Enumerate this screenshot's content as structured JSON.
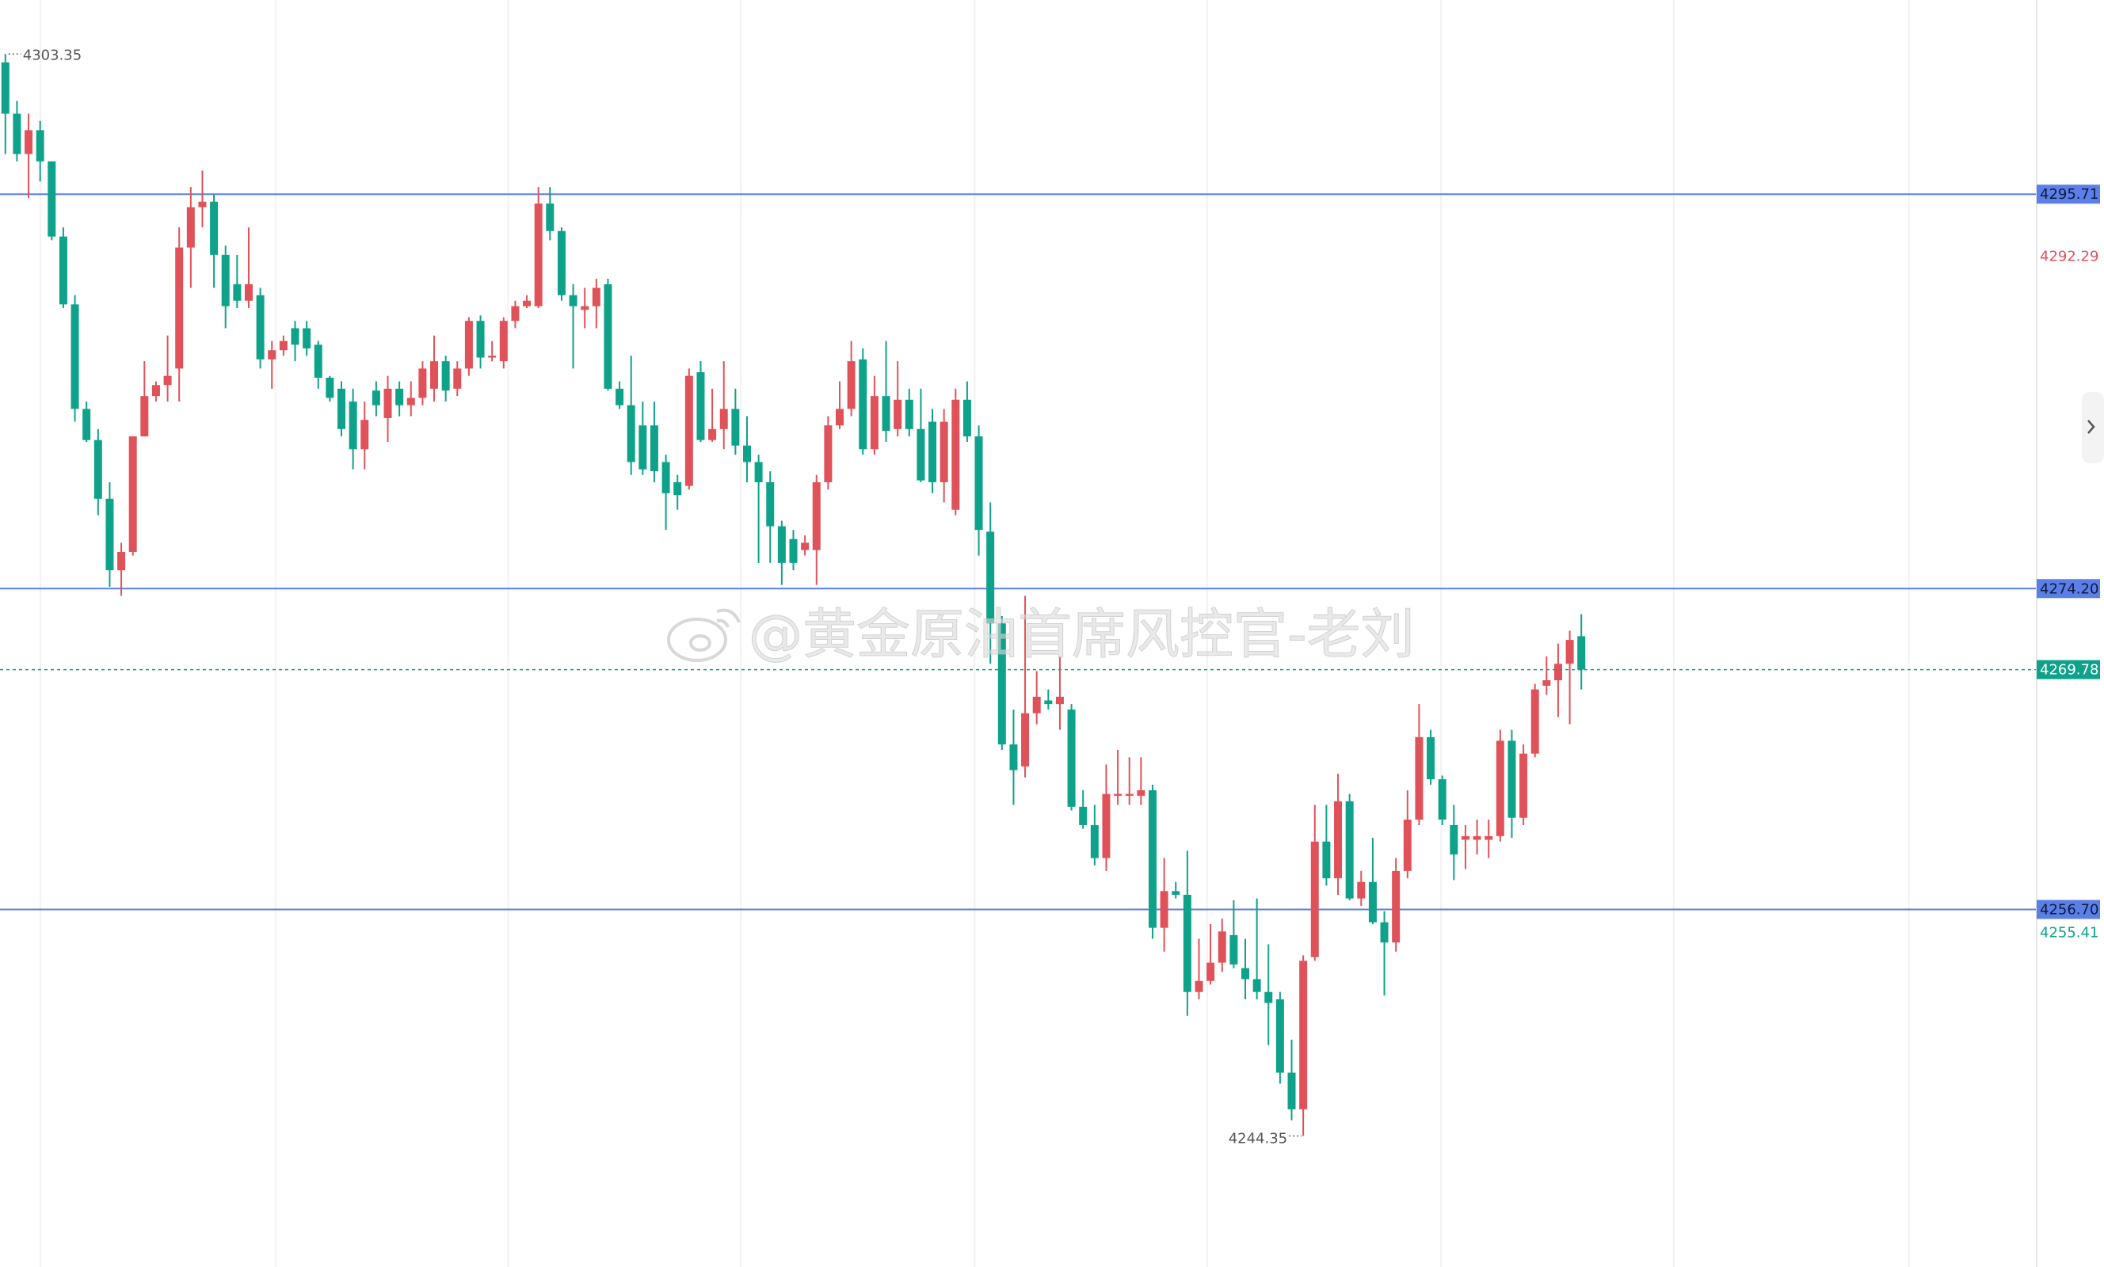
{
  "chart_data": {
    "type": "candlestick",
    "ylim": [
      4237.2,
      4306.3
    ],
    "up_color": "#e0525a",
    "down_color": "#0fa28a",
    "level_color": "#5b7fe6",
    "price_lines": [
      4295.71,
      {
        "value": 4274.2,
        "label": "4274.20"
      },
      {
        "value": 4256.7,
        "label": "4256.70"
      }
    ],
    "current_price": 4269.78,
    "price_markers": [
      {
        "value": 4292.29,
        "color": "#e0525a"
      },
      {
        "value": 4255.41,
        "color": "#0fa28a"
      }
    ],
    "candles": [
      [
        4302.9,
        4303.35,
        4297.9,
        4300.1
      ],
      [
        4300.1,
        4300.8,
        4297.5,
        4297.9
      ],
      [
        4297.9,
        4300.1,
        4295.5,
        4299.2
      ],
      [
        4299.2,
        4299.7,
        4296.4,
        4297.5
      ],
      [
        4297.5,
        4297.5,
        4293.2,
        4293.4
      ],
      [
        4293.4,
        4293.9,
        4289.5,
        4289.7
      ],
      [
        4289.7,
        4290.2,
        4283.3,
        4284.0
      ],
      [
        4284.0,
        4284.4,
        4282.2,
        4282.3
      ],
      [
        4282.3,
        4282.9,
        4278.2,
        4279.1
      ],
      [
        4279.1,
        4280.0,
        4274.3,
        4275.2
      ],
      [
        4275.2,
        4276.7,
        4273.8,
        4276.2
      ],
      [
        4276.2,
        4282.5,
        4276.0,
        4282.5
      ],
      [
        4282.5,
        4286.6,
        4282.5,
        4284.7
      ],
      [
        4284.7,
        4285.5,
        4284.4,
        4285.3
      ],
      [
        4285.3,
        4288.0,
        4284.4,
        4285.8
      ],
      [
        4286.2,
        4293.9,
        4284.4,
        4292.8
      ],
      [
        4292.8,
        4296.1,
        4290.6,
        4295.0
      ],
      [
        4295.0,
        4297.0,
        4293.9,
        4295.3
      ],
      [
        4295.3,
        4295.7,
        4290.6,
        4292.4
      ],
      [
        4292.4,
        4292.9,
        4288.4,
        4289.6
      ],
      [
        4290.8,
        4292.4,
        4289.5,
        4289.9
      ],
      [
        4289.9,
        4293.9,
        4289.5,
        4290.8
      ],
      [
        4290.2,
        4290.6,
        4286.2,
        4286.7
      ],
      [
        4286.7,
        4287.7,
        4285.1,
        4287.2
      ],
      [
        4287.2,
        4288.0,
        4286.9,
        4287.7
      ],
      [
        4288.4,
        4288.8,
        4286.6,
        4287.5
      ],
      [
        4288.4,
        4288.8,
        4286.9,
        4287.3
      ],
      [
        4287.5,
        4287.7,
        4285.1,
        4285.7
      ],
      [
        4285.7,
        4285.8,
        4284.4,
        4284.6
      ],
      [
        4285.1,
        4285.5,
        4282.5,
        4282.9
      ],
      [
        4284.4,
        4285.1,
        4280.7,
        4281.8
      ],
      [
        4281.8,
        4284.4,
        4280.7,
        4283.4
      ],
      [
        4285.0,
        4285.5,
        4283.6,
        4284.2
      ],
      [
        4283.5,
        4285.8,
        4282.2,
        4285.1
      ],
      [
        4285.1,
        4285.5,
        4283.6,
        4284.2
      ],
      [
        4284.2,
        4285.5,
        4283.6,
        4284.6
      ],
      [
        4284.6,
        4286.6,
        4284.2,
        4286.2
      ],
      [
        4285.1,
        4288.0,
        4284.4,
        4286.6
      ],
      [
        4286.6,
        4286.9,
        4284.4,
        4285.0
      ],
      [
        4285.1,
        4286.6,
        4284.7,
        4286.2
      ],
      [
        4286.2,
        4289.0,
        4285.8,
        4288.8
      ],
      [
        4288.8,
        4289.1,
        4286.2,
        4286.8
      ],
      [
        4286.8,
        4287.7,
        4286.6,
        4286.9
      ],
      [
        4286.6,
        4289.0,
        4286.2,
        4288.8
      ],
      [
        4288.8,
        4289.9,
        4288.4,
        4289.6
      ],
      [
        4289.6,
        4290.2,
        4289.5,
        4289.9
      ],
      [
        4289.6,
        4296.1,
        4289.5,
        4295.2
      ],
      [
        4295.2,
        4296.1,
        4293.2,
        4293.7
      ],
      [
        4293.7,
        4293.9,
        4289.9,
        4290.2
      ],
      [
        4290.2,
        4290.8,
        4286.2,
        4289.6
      ],
      [
        4289.4,
        4290.6,
        4288.4,
        4289.6
      ],
      [
        4289.6,
        4291.1,
        4288.4,
        4290.6
      ],
      [
        4290.8,
        4291.1,
        4285.0,
        4285.1
      ],
      [
        4285.1,
        4285.5,
        4284.0,
        4284.2
      ],
      [
        4284.2,
        4286.9,
        4280.4,
        4281.1
      ],
      [
        4283.1,
        4284.4,
        4280.4,
        4280.7
      ],
      [
        4283.1,
        4284.4,
        4280.0,
        4280.6
      ],
      [
        4281.1,
        4281.5,
        4277.4,
        4279.4
      ],
      [
        4280.0,
        4280.4,
        4278.5,
        4279.3
      ],
      [
        4279.8,
        4286.2,
        4279.6,
        4285.8
      ],
      [
        4286.0,
        4286.6,
        4282.2,
        4282.3
      ],
      [
        4282.3,
        4285.1,
        4282.2,
        4282.9
      ],
      [
        4282.9,
        4286.6,
        4281.8,
        4284.0
      ],
      [
        4284.0,
        4285.1,
        4281.5,
        4282.0
      ],
      [
        4282.0,
        4283.6,
        4280.0,
        4281.1
      ],
      [
        4281.1,
        4281.5,
        4275.6,
        4280.0
      ],
      [
        4280.0,
        4280.6,
        4275.6,
        4277.6
      ],
      [
        4277.6,
        4277.9,
        4274.4,
        4275.6
      ],
      [
        4276.9,
        4277.4,
        4275.2,
        4275.6
      ],
      [
        4276.3,
        4277.1,
        4276.0,
        4276.7
      ],
      [
        4276.3,
        4280.4,
        4274.4,
        4280.0
      ],
      [
        4280.0,
        4283.6,
        4279.6,
        4283.1
      ],
      [
        4283.1,
        4285.5,
        4282.9,
        4284.0
      ],
      [
        4284.0,
        4287.7,
        4283.6,
        4286.6
      ],
      [
        4286.7,
        4287.3,
        4281.5,
        4281.8
      ],
      [
        4281.8,
        4285.8,
        4281.5,
        4284.7
      ],
      [
        4284.7,
        4287.7,
        4282.2,
        4282.8
      ],
      [
        4282.9,
        4286.6,
        4282.5,
        4284.5
      ],
      [
        4284.5,
        4285.1,
        4282.5,
        4282.9
      ],
      [
        4282.9,
        4285.1,
        4280.0,
        4280.1
      ],
      [
        4283.3,
        4284.0,
        4279.4,
        4280.0
      ],
      [
        4280.0,
        4284.0,
        4278.9,
        4283.3
      ],
      [
        4278.5,
        4285.1,
        4278.2,
        4284.5
      ],
      [
        4284.5,
        4285.5,
        4282.2,
        4282.5
      ],
      [
        4282.5,
        4283.1,
        4276.0,
        4277.4
      ],
      [
        4277.3,
        4278.9,
        4270.1,
        4272.3
      ],
      [
        4272.3,
        4272.7,
        4265.4,
        4265.7
      ],
      [
        4265.7,
        4267.6,
        4262.4,
        4264.3
      ],
      [
        4264.5,
        4273.8,
        4263.9,
        4267.4
      ],
      [
        4267.4,
        4269.7,
        4266.8,
        4268.3
      ],
      [
        4268.1,
        4268.7,
        4267.6,
        4267.9
      ],
      [
        4267.9,
        4270.5,
        4266.5,
        4268.3
      ],
      [
        4267.6,
        4267.9,
        4262.1,
        4262.3
      ],
      [
        4262.3,
        4263.2,
        4261.1,
        4261.3
      ],
      [
        4261.3,
        4262.4,
        4259.1,
        4259.5
      ],
      [
        4259.5,
        4264.6,
        4258.8,
        4263.0
      ],
      [
        4262.9,
        4265.4,
        4262.4,
        4263.0
      ],
      [
        4262.9,
        4265.0,
        4262.4,
        4263.0
      ],
      [
        4262.9,
        4265.0,
        4262.4,
        4263.2
      ],
      [
        4263.2,
        4263.5,
        4255.1,
        4255.7
      ],
      [
        4255.7,
        4259.5,
        4254.4,
        4257.7
      ],
      [
        4257.7,
        4258.2,
        4257.3,
        4257.5
      ],
      [
        4257.5,
        4259.9,
        4250.9,
        4252.2
      ],
      [
        4252.2,
        4255.1,
        4251.8,
        4252.8
      ],
      [
        4252.8,
        4255.9,
        4252.6,
        4253.8
      ],
      [
        4253.8,
        4256.2,
        4253.3,
        4255.5
      ],
      [
        4255.3,
        4257.2,
        4253.5,
        4253.7
      ],
      [
        4253.5,
        4255.1,
        4251.8,
        4252.9
      ],
      [
        4252.9,
        4257.3,
        4251.8,
        4252.2
      ],
      [
        4252.2,
        4254.8,
        4249.3,
        4251.6
      ],
      [
        4251.8,
        4252.2,
        4247.2,
        4247.8
      ],
      [
        4247.8,
        4249.6,
        4245.2,
        4245.8
      ],
      [
        4245.8,
        4254.2,
        4244.35,
        4253.9
      ],
      [
        4254.1,
        4262.4,
        4253.9,
        4260.4
      ],
      [
        4260.4,
        4262.4,
        4258.0,
        4258.4
      ],
      [
        4258.4,
        4264.1,
        4257.5,
        4262.6
      ],
      [
        4262.6,
        4263.0,
        4257.2,
        4257.3
      ],
      [
        4257.3,
        4258.8,
        4256.9,
        4258.2
      ],
      [
        4258.2,
        4260.6,
        4255.9,
        4256.0
      ],
      [
        4256.0,
        4256.6,
        4252.0,
        4254.9
      ],
      [
        4254.9,
        4259.5,
        4254.4,
        4258.8
      ],
      [
        4258.8,
        4263.2,
        4258.4,
        4261.6
      ],
      [
        4261.6,
        4267.9,
        4261.3,
        4266.1
      ],
      [
        4266.1,
        4266.5,
        4263.5,
        4263.8
      ],
      [
        4263.8,
        4264.0,
        4261.3,
        4261.6
      ],
      [
        4261.3,
        4262.4,
        4258.3,
        4259.7
      ],
      [
        4260.5,
        4261.3,
        4258.9,
        4260.7
      ],
      [
        4260.5,
        4261.6,
        4259.7,
        4260.7
      ],
      [
        4260.5,
        4261.6,
        4259.5,
        4260.7
      ],
      [
        4260.7,
        4266.5,
        4260.4,
        4265.9
      ],
      [
        4265.9,
        4266.5,
        4260.6,
        4261.7
      ],
      [
        4261.7,
        4265.7,
        4261.3,
        4265.2
      ],
      [
        4265.2,
        4269.0,
        4265.0,
        4268.7
      ],
      [
        4268.9,
        4270.5,
        4268.4,
        4269.2
      ],
      [
        4269.2,
        4271.2,
        4267.2,
        4270.1
      ],
      [
        4270.1,
        4271.9,
        4266.8,
        4271.4
      ],
      [
        4271.6,
        4272.8,
        4268.7,
        4269.78
      ]
    ]
  },
  "watermark": "@黄金原油首席风控官-老刘"
}
